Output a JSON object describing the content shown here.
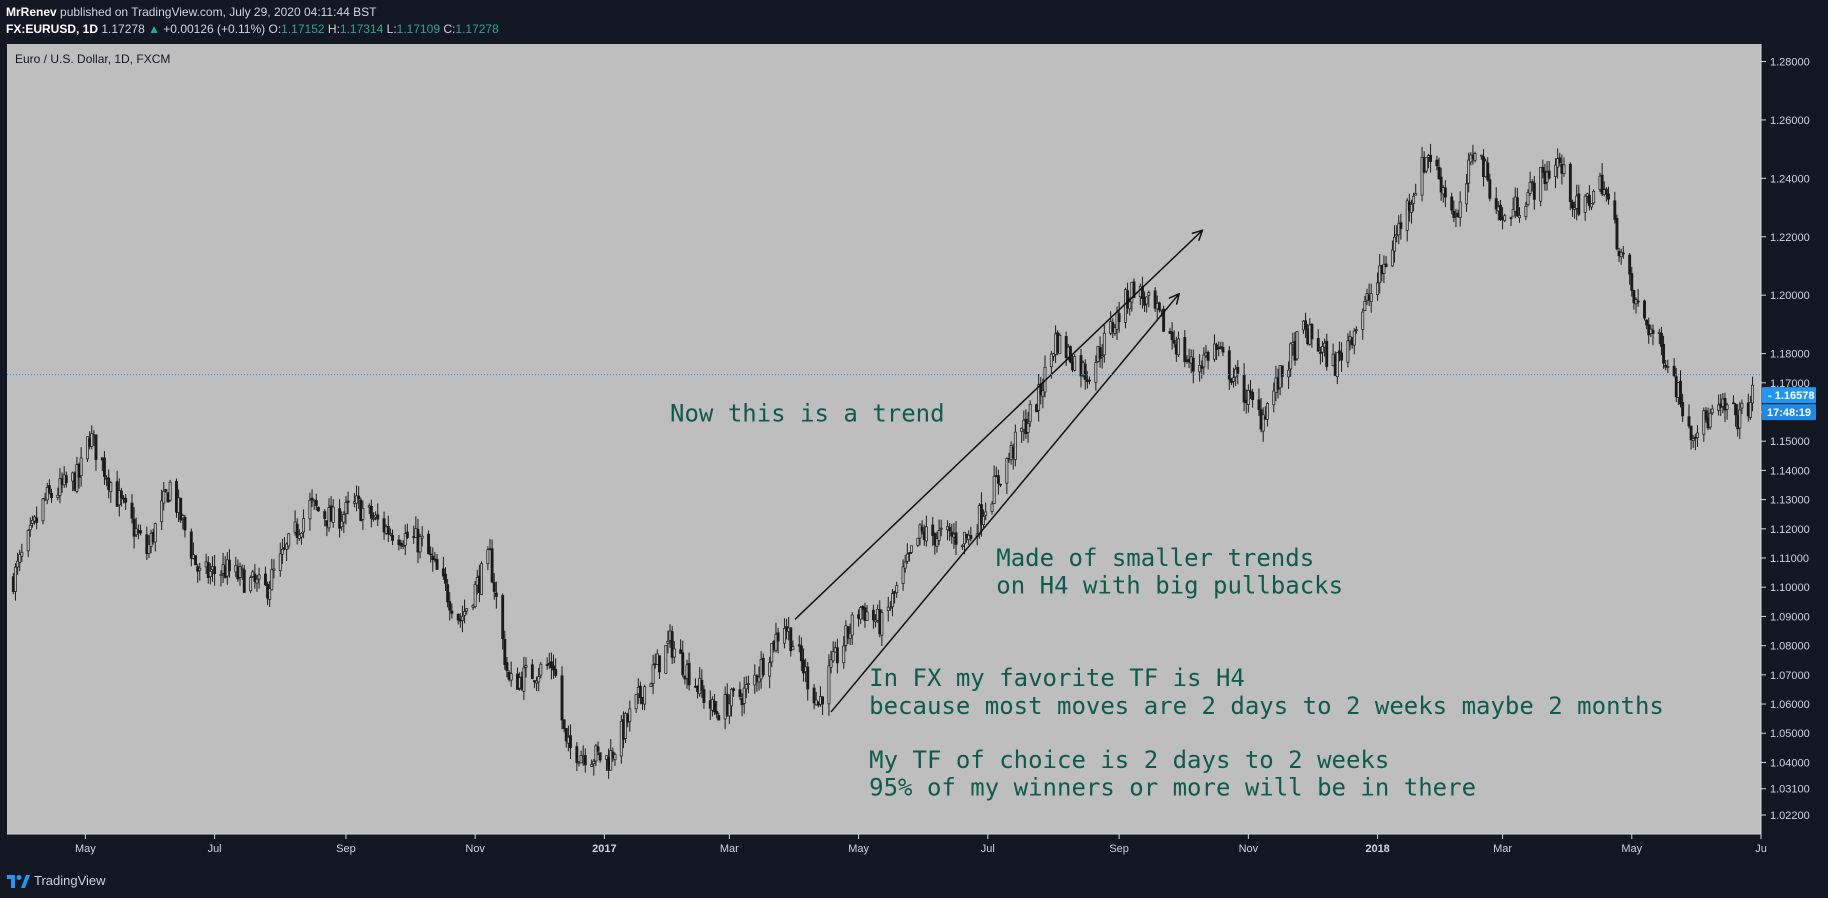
{
  "header": {
    "author": "MrRenev",
    "published": "published on TradingView.com, July 29, 2020 04:11:44 BST",
    "symbol": "FX:EURUSD, 1D",
    "last": "1.17278",
    "change": "+0.00126 (+0.11%)",
    "o_label": "O:",
    "o": "1.17152",
    "h_label": "H:",
    "h": "1.17314",
    "l_label": "L:",
    "l": "1.17109",
    "c_label": "C:",
    "c": "1.17278"
  },
  "footer": {
    "brand": "TradingView"
  },
  "colors": {
    "background": "#bebebe",
    "candle": "#1b1b1b",
    "text": "#0f5a4a",
    "accent": "#2196f3",
    "dark": "#131722"
  },
  "chart_data": {
    "type": "candlestick",
    "title": "Euro / U.S. Dollar, 1D, FXCM",
    "y_axis": {
      "ticks": [
        "1.28000",
        "1.26000",
        "1.24000",
        "1.22000",
        "1.20000",
        "1.18000",
        "1.17000",
        "1.16000",
        "1.15000",
        "1.14000",
        "1.13000",
        "1.12000",
        "1.11000",
        "1.10000",
        "1.09000",
        "1.08000",
        "1.07000",
        "1.06000",
        "1.05000",
        "1.04000",
        "1.03100",
        "1.02200"
      ],
      "range": [
        1.0155,
        1.286
      ]
    },
    "x_axis": {
      "range": [
        "2016-03-25",
        "2018-07-01"
      ],
      "ticks": [
        {
          "label": "May",
          "date": "2016-05-01",
          "bold": false
        },
        {
          "label": "Jul",
          "date": "2016-07-01",
          "bold": false
        },
        {
          "label": "Sep",
          "date": "2016-09-01",
          "bold": false
        },
        {
          "label": "Nov",
          "date": "2016-11-01",
          "bold": false
        },
        {
          "label": "2017",
          "date": "2017-01-01",
          "bold": true
        },
        {
          "label": "Mar",
          "date": "2017-03-01",
          "bold": false
        },
        {
          "label": "May",
          "date": "2017-05-01",
          "bold": false
        },
        {
          "label": "Jul",
          "date": "2017-07-01",
          "bold": false
        },
        {
          "label": "Sep",
          "date": "2017-09-01",
          "bold": false
        },
        {
          "label": "Nov",
          "date": "2017-11-01",
          "bold": false
        },
        {
          "label": "2018",
          "date": "2018-01-01",
          "bold": true
        },
        {
          "label": "Mar",
          "date": "2018-03-01",
          "bold": false
        },
        {
          "label": "May",
          "date": "2018-05-01",
          "bold": false
        },
        {
          "label": "Ju",
          "date": "2018-07-01",
          "bold": false
        }
      ]
    },
    "current_price": {
      "value": 1.16578,
      "label": "1.16578",
      "countdown": "17:48:19"
    },
    "dotted_line": 1.1728,
    "close_path": [
      [
        "2016-03-28",
        1.103
      ],
      [
        "2016-04-12",
        1.13
      ],
      [
        "2016-04-28",
        1.138
      ],
      [
        "2016-05-03",
        1.152
      ],
      [
        "2016-05-16",
        1.131
      ],
      [
        "2016-05-30",
        1.112
      ],
      [
        "2016-06-10",
        1.135
      ],
      [
        "2016-06-24",
        1.104
      ],
      [
        "2016-07-06",
        1.106
      ],
      [
        "2016-07-25",
        1.099
      ],
      [
        "2016-08-15",
        1.128
      ],
      [
        "2016-08-26",
        1.123
      ],
      [
        "2016-09-06",
        1.128
      ],
      [
        "2016-09-20",
        1.12
      ],
      [
        "2016-10-07",
        1.115
      ],
      [
        "2016-10-25",
        1.089
      ],
      [
        "2016-11-08",
        1.11
      ],
      [
        "2016-11-17",
        1.067
      ],
      [
        "2016-12-08",
        1.074
      ],
      [
        "2016-12-14",
        1.045
      ],
      [
        "2017-01-03",
        1.041
      ],
      [
        "2017-01-20",
        1.066
      ],
      [
        "2017-02-01",
        1.081
      ],
      [
        "2017-02-22",
        1.057
      ],
      [
        "2017-03-10",
        1.065
      ],
      [
        "2017-03-27",
        1.088
      ],
      [
        "2017-04-12",
        1.06
      ],
      [
        "2017-04-18",
        1.072
      ],
      [
        "2017-05-02",
        1.093
      ],
      [
        "2017-05-12",
        1.087
      ],
      [
        "2017-05-30",
        1.118
      ],
      [
        "2017-06-22",
        1.117
      ],
      [
        "2017-07-06",
        1.137
      ],
      [
        "2017-07-25",
        1.165
      ],
      [
        "2017-08-02",
        1.185
      ],
      [
        "2017-08-17",
        1.173
      ],
      [
        "2017-09-08",
        1.203
      ],
      [
        "2017-09-20",
        1.192
      ],
      [
        "2017-10-06",
        1.175
      ],
      [
        "2017-10-16",
        1.182
      ],
      [
        "2017-11-07",
        1.158
      ],
      [
        "2017-11-27",
        1.188
      ],
      [
        "2017-12-12",
        1.176
      ],
      [
        "2018-01-02",
        1.206
      ],
      [
        "2018-01-25",
        1.249
      ],
      [
        "2018-02-08",
        1.225
      ],
      [
        "2018-02-16",
        1.252
      ],
      [
        "2018-03-01",
        1.225
      ],
      [
        "2018-03-27",
        1.246
      ],
      [
        "2018-04-06",
        1.228
      ],
      [
        "2018-04-17",
        1.239
      ],
      [
        "2018-05-02",
        1.198
      ],
      [
        "2018-05-18",
        1.178
      ],
      [
        "2018-05-29",
        1.154
      ],
      [
        "2018-06-14",
        1.161
      ],
      [
        "2018-06-21",
        1.158
      ],
      [
        "2018-06-27",
        1.165
      ]
    ],
    "lines": [
      {
        "name": "channel-upper",
        "from": [
          "2017-04-01",
          1.089
        ],
        "to": [
          "2017-10-10",
          1.222
        ],
        "arrow": true
      },
      {
        "name": "channel-lower",
        "from": [
          "2017-04-18",
          1.0573
        ],
        "to": [
          "2017-09-29",
          1.2002
        ],
        "arrow": true
      }
    ],
    "annotations": [
      {
        "lines": [
          "Now this is a trend"
        ],
        "date": "2017-02-01",
        "price": 1.1568,
        "size": 24
      },
      {
        "lines": [
          "Made of smaller trends",
          "on H4 with big pullbacks"
        ],
        "date": "2017-07-05",
        "price": 1.1073,
        "size": 24
      },
      {
        "lines": [
          "In FX my favorite TF is H4",
          "because most moves are 2 days to 2 weeks maybe 2 months"
        ],
        "date": "2017-05-06",
        "price": 1.0661,
        "size": 24
      },
      {
        "lines": [
          "My TF of choice is 2 days to 2 weeks",
          "95% of my winners or more will be in there"
        ],
        "date": "2017-05-06",
        "price": 1.0381,
        "size": 24
      }
    ]
  }
}
